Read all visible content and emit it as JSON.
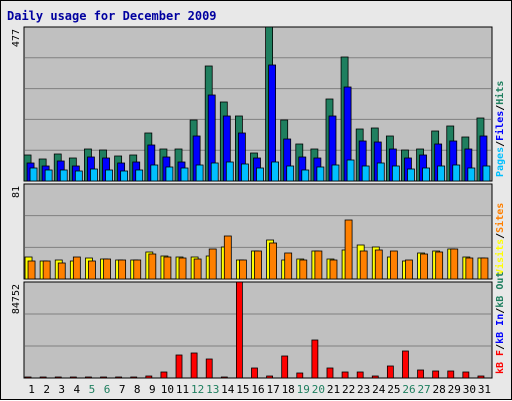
{
  "colors": {
    "frame_bg": "#e8e8e8",
    "plot_bg": "#c0c0c0",
    "title": "#0000a0",
    "hits": "#1f7f5f",
    "files": "#0000ff",
    "pages": "#00c0ff",
    "visits": "#ffff00",
    "sites": "#ff8000",
    "kbin": "#0000ff",
    "kbout": "#1f7f5f",
    "kbf": "#ff0000",
    "day_normal": "#000000",
    "day_weekend": "#1f7f5f"
  },
  "chart_data": {
    "type": "bar",
    "title": "Daily usage for December 2009",
    "categories": [
      "1",
      "2",
      "3",
      "4",
      "5",
      "6",
      "7",
      "8",
      "9",
      "10",
      "11",
      "12",
      "13",
      "14",
      "15",
      "16",
      "17",
      "18",
      "19",
      "20",
      "21",
      "22",
      "23",
      "24",
      "25",
      "26",
      "27",
      "28",
      "29",
      "30",
      "31"
    ],
    "weekend_days": [
      "5",
      "6",
      "12",
      "13",
      "19",
      "20",
      "26",
      "27"
    ],
    "panels": [
      {
        "name": "hits-files-pages",
        "ymax": 477,
        "ymax_label": "477",
        "legend": [
          "Pages",
          "/",
          "Files",
          "/",
          "Hits"
        ],
        "series": [
          {
            "name": "Hits",
            "color": "hits",
            "values": [
              80,
              68,
              85,
              70,
              100,
              95,
              78,
              80,
              150,
              100,
              100,
              190,
              355,
              245,
              200,
              88,
              477,
              190,
              115,
              100,
              255,
              385,
              160,
              165,
              140,
              95,
              98,
              155,
              170,
              135,
              195
            ]
          },
          {
            "name": "Files",
            "color": "files",
            "values": [
              55,
              45,
              62,
              48,
              75,
              70,
              55,
              58,
              110,
              75,
              60,
              140,
              265,
              200,
              148,
              70,
              360,
              130,
              75,
              70,
              200,
              290,
              125,
              120,
              100,
              72,
              80,
              115,
              125,
              98,
              140
            ]
          },
          {
            "name": "Pages",
            "color": "pages",
            "values": [
              40,
              35,
              35,
              32,
              38,
              35,
              30,
              35,
              50,
              42,
              40,
              50,
              55,
              58,
              52,
              40,
              58,
              48,
              35,
              42,
              50,
              65,
              48,
              55,
              45,
              38,
              40,
              48,
              50,
              40,
              45
            ]
          }
        ]
      },
      {
        "name": "visits-sites",
        "ymax": 81,
        "ymax_label": "81",
        "legend": [
          "Visits",
          "/",
          "Sites"
        ],
        "series": [
          {
            "name": "Visits",
            "color": "visits",
            "values": [
              19,
              15,
              16,
              15,
              18,
              17,
              16,
              16,
              23,
              20,
              19,
              19,
              20,
              27,
              16,
              24,
              33,
              16,
              17,
              24,
              17,
              25,
              29,
              27,
              19,
              15,
              22,
              24,
              26,
              19,
              18
            ]
          },
          {
            "name": "Sites",
            "color": "sites",
            "values": [
              15,
              15,
              14,
              19,
              15,
              17,
              16,
              16,
              21,
              19,
              18,
              17,
              26,
              37,
              16,
              24,
              31,
              22,
              16,
              24,
              16,
              50,
              24,
              25,
              24,
              16,
              21,
              23,
              26,
              18,
              18
            ]
          }
        ]
      },
      {
        "name": "kbf-kbin-kbout",
        "ymax": 84752,
        "ymax_label": "84752",
        "legend": [
          "kB F",
          "/",
          "kB In",
          "/",
          "kB Out"
        ],
        "series": [
          {
            "name": "kB F",
            "color": "kbf",
            "values": [
              1200,
              1200,
              1200,
              1200,
              1200,
              1200,
              1300,
              1300,
              1500,
              5500,
              20000,
              22500,
              17000,
              1200,
              84752,
              8500,
              1800,
              19500,
              4000,
              33500,
              8500,
              5500,
              5500,
              1800,
              10500,
              23500,
              7500,
              6500,
              6500,
              5500,
              1800
            ]
          }
        ]
      }
    ],
    "legend_separator_color": "#000000"
  }
}
